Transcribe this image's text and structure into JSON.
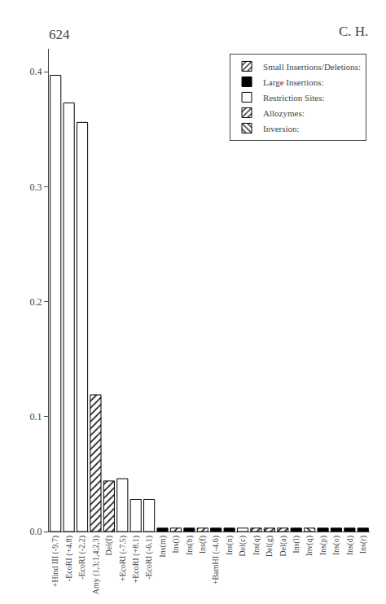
{
  "chart_data": {
    "type": "bar",
    "title": "624",
    "subtitle": "C. H.",
    "categories": [
      "+Hind III (-9.7)",
      "-EcoRI (+4.8)",
      "-EcoRI (-2.2)",
      "Amy (1,3;1,4;2,3)",
      "Del(f)",
      "+EcoRI (-7.5)",
      "+EcoRI (+8.1)",
      "-EcoRI (-6.1)",
      "Ins(m)",
      "Ins(i)",
      "Ins(b)",
      "Ins(f)",
      "+BamHI (-4.6)",
      "Ins(n)",
      "Del(c)",
      "Ins(q)",
      "Del(g)",
      "Del(a)",
      "Ins(l)",
      "Inv(q)",
      "Ins(p)",
      "Ins(o)",
      "Ins(d)",
      "Ins(r)"
    ],
    "series": [
      {
        "name": "Small Insertions/Deletions:",
        "color": "#ffffff",
        "marker": "forward_hatch",
        "values": [
          null,
          null,
          null,
          0.119,
          0.044,
          null,
          null,
          null,
          null,
          0.003,
          null,
          0.003,
          null,
          null,
          null,
          0.003,
          0.003,
          0.003,
          null,
          null,
          null,
          null,
          null,
          null
        ]
      },
      {
        "name": "Large Insertions:",
        "color": "#000000",
        "marker": "solid",
        "values": [
          null,
          null,
          null,
          null,
          null,
          null,
          null,
          null,
          0.003,
          null,
          0.003,
          null,
          0.003,
          0.003,
          null,
          null,
          null,
          null,
          0.003,
          null,
          0.003,
          0.003,
          0.003,
          0.003
        ]
      },
      {
        "name": "Restriction Sites:",
        "color": "#ffffff",
        "marker": "solid",
        "values": [
          0.397,
          0.373,
          0.356,
          null,
          null,
          0.046,
          0.028,
          0.028,
          null,
          null,
          null,
          null,
          null,
          null,
          0.003,
          null,
          null,
          null,
          null,
          null,
          null,
          null,
          null,
          null
        ]
      },
      {
        "name": "Allozymes:",
        "color": "#808080",
        "marker": "forward_hatch",
        "values": [
          null,
          null,
          null,
          null,
          null,
          null,
          null,
          null,
          null,
          null,
          null,
          null,
          null,
          null,
          null,
          null,
          null,
          null,
          null,
          null,
          null,
          null,
          null,
          null
        ]
      },
      {
        "name": "Inversion:",
        "color": "#ffffff",
        "marker": "back_hatch",
        "values": [
          null,
          null,
          null,
          null,
          null,
          null,
          null,
          null,
          null,
          null,
          null,
          null,
          null,
          null,
          null,
          null,
          null,
          null,
          null,
          0.003,
          null,
          null,
          null,
          null
        ]
      }
    ],
    "ylim": [
      0,
      0.42
    ],
    "yticks": [
      {
        "value": 0,
        "label": "0.0"
      },
      0.1,
      0.2,
      0.3,
      0.4
    ],
    "grid": false,
    "legend": "upper right"
  }
}
